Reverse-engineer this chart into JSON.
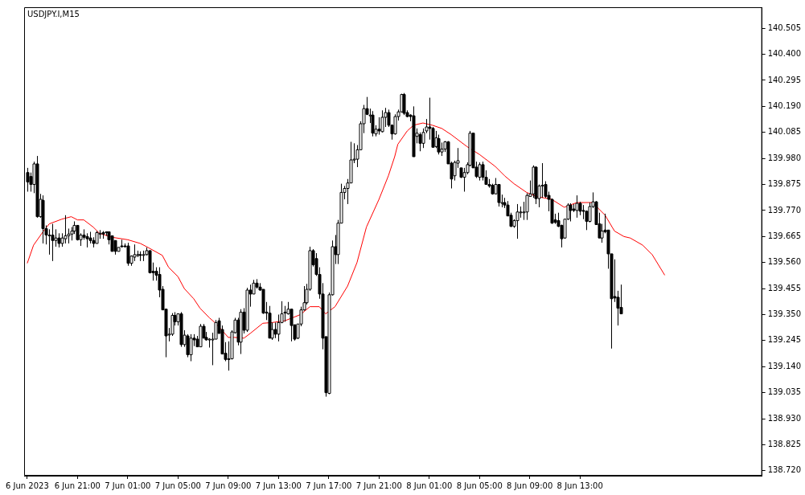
{
  "chart_data": {
    "type": "candlestick",
    "title": "USDJPY.I,M15",
    "xlim": [
      "2023-06-06T16:45",
      "2023-06-09T03:30"
    ],
    "xticks": [
      {
        "value": "2023-06-06T17:00",
        "label": "6 Jun 2023"
      },
      {
        "value": "2023-06-06T21:00",
        "label": "6 Jun 21:00"
      },
      {
        "value": "2023-06-07T01:00",
        "label": "7 Jun 01:00"
      },
      {
        "value": "2023-06-07T05:00",
        "label": "7 Jun 05:00"
      },
      {
        "value": "2023-06-07T09:00",
        "label": "7 Jun 09:00"
      },
      {
        "value": "2023-06-07T13:00",
        "label": "7 Jun 13:00"
      },
      {
        "value": "2023-06-07T17:00",
        "label": "7 Jun 17:00"
      },
      {
        "value": "2023-06-07T21:00",
        "label": "7 Jun 21:00"
      },
      {
        "value": "2023-06-08T01:00",
        "label": "8 Jun 01:00"
      },
      {
        "value": "2023-06-08T05:00",
        "label": "8 Jun 05:00"
      },
      {
        "value": "2023-06-08T09:00",
        "label": "8 Jun 09:00"
      },
      {
        "value": "2023-06-08T13:00",
        "label": "8 Jun 13:00"
      }
    ],
    "ylim": [
      138.7,
      140.59
    ],
    "yticks": [
      {
        "value": 138.72,
        "label": "138.720"
      },
      {
        "value": 138.825,
        "label": "138.825"
      },
      {
        "value": 138.93,
        "label": "138.930"
      },
      {
        "value": 139.035,
        "label": "139.035"
      },
      {
        "value": 139.14,
        "label": "139.140"
      },
      {
        "value": 139.245,
        "label": "139.245"
      },
      {
        "value": 139.35,
        "label": "139.350"
      },
      {
        "value": 139.455,
        "label": "139.455"
      },
      {
        "value": 139.56,
        "label": "139.560"
      },
      {
        "value": 139.665,
        "label": "139.665"
      },
      {
        "value": 139.77,
        "label": "139.770"
      },
      {
        "value": 139.875,
        "label": "139.875"
      },
      {
        "value": 139.98,
        "label": "139.980"
      },
      {
        "value": 140.085,
        "label": "140.085"
      },
      {
        "value": 140.19,
        "label": "140.190"
      },
      {
        "value": 140.295,
        "label": "140.295"
      },
      {
        "value": 140.4,
        "label": "140.400"
      },
      {
        "value": 140.505,
        "label": "140.505"
      }
    ],
    "series": [
      {
        "type": "candlestick",
        "colors": [
          "#000000",
          "#000000",
          "#ffffff",
          "#000000",
          "#ffffff",
          "#000000",
          "#000000",
          "#000000",
          "#000000",
          "#ffffff",
          "#000000",
          "#ffffff",
          "#ffffff",
          "#ffffff",
          "#ffffff",
          "#ffffff",
          "#000000",
          "#ffffff",
          "#000000",
          "#000000",
          "#000000",
          "#000000",
          "#ffffff",
          "#ffffff",
          "#000000",
          "#000000",
          "#000000",
          "#000000",
          "#000000",
          "#ffffff",
          "#000000",
          "#000000",
          "#000000",
          "#ffffff",
          "#ffffff",
          "#ffffff",
          "#000000",
          "#ffffff",
          "#ffffff",
          "#000000",
          "#000000",
          "#000000",
          "#000000",
          "#000000",
          "#000000",
          "#ffffff",
          "#ffffff",
          "#000000",
          "#ffffff",
          "#000000",
          "#ffffff",
          "#000000",
          "#ffffff",
          "#000000",
          "#000000",
          "#ffffff",
          "#000000",
          "#000000",
          "#ffffff",
          "#ffffff",
          "#ffffff",
          "#000000",
          "#000000",
          "#000000",
          "#000000",
          "#ffffff",
          "#ffffff",
          "#000000",
          "#ffffff",
          "#000000",
          "#ffffff",
          "#000000",
          "#ffffff",
          "#000000",
          "#000000",
          "#000000",
          "#000000",
          "#000000",
          "#ffffff",
          "#000000",
          "#ffffff",
          "#ffffff",
          "#ffffff",
          "#ffffff",
          "#000000",
          "#000000",
          "#ffffff",
          "#ffffff",
          "#ffffff",
          "#ffffff",
          "#ffffff",
          "#000000",
          "#000000",
          "#000000",
          "#000000",
          "#000000",
          "#ffffff",
          "#ffffff",
          "#000000",
          "#ffffff",
          "#ffffff",
          "#ffffff",
          "#ffffff",
          "#ffffff",
          "#ffffff",
          "#ffffff",
          "#ffffff",
          "#ffffff",
          "#000000",
          "#ffffff",
          "#000000",
          "#ffffff",
          "#000000",
          "#ffffff",
          "#ffffff",
          "#000000",
          "#000000",
          "#ffffff",
          "#ffffff",
          "#ffffff",
          "#000000",
          "#000000",
          "#000000",
          "#000000",
          "#ffffff",
          "#000000",
          "#ffffff",
          "#ffffff",
          "#000000",
          "#000000",
          "#ffffff",
          "#000000",
          "#ffffff",
          "#ffffff",
          "#000000",
          "#000000",
          "#ffffff",
          "#ffffff",
          "#000000",
          "#ffffff",
          "#ffffff",
          "#ffffff",
          "#000000",
          "#000000",
          "#ffffff",
          "#000000",
          "#000000",
          "#000000",
          "#000000",
          "#ffffff",
          "#000000",
          "#ffffff",
          "#000000",
          "#000000",
          "#000000",
          "#ffffff",
          "#ffffff",
          "#ffffff",
          "#ffffff",
          "#ffffff",
          "#ffffff",
          "#ffffff",
          "#000000",
          "#ffffff",
          "#ffffff",
          "#000000",
          "#000000",
          "#000000",
          "#000000",
          "#000000",
          "#000000",
          "#ffffff",
          "#ffffff",
          "#000000",
          "#000000",
          "#ffffff",
          "#000000",
          "#000000",
          "#000000",
          "#ffffff",
          "#ffffff",
          "#000000",
          "#000000",
          "#ffffff",
          "#000000",
          "#000000",
          "#000000",
          "#000000",
          "#000000",
          "#000000"
        ],
        "x": [
          "2023-06-06T17:00",
          "2023-06-06T17:15",
          "2023-06-06T17:30",
          "2023-06-06T17:45",
          "2023-06-06T18:00",
          "2023-06-06T18:15",
          "2023-06-06T18:30",
          "2023-06-06T18:45",
          "2023-06-06T19:00",
          "2023-06-06T19:15",
          "2023-06-06T19:30",
          "2023-06-06T19:45",
          "2023-06-06T20:00",
          "2023-06-06T20:15",
          "2023-06-06T20:30",
          "2023-06-06T20:45",
          "2023-06-06T21:00",
          "2023-06-06T21:15",
          "2023-06-06T21:30",
          "2023-06-06T21:45",
          "2023-06-06T22:00",
          "2023-06-06T22:15",
          "2023-06-06T22:30",
          "2023-06-06T22:45",
          "2023-06-06T23:00",
          "2023-06-06T23:15",
          "2023-06-06T23:30",
          "2023-06-06T23:45",
          "2023-06-07T00:00",
          "2023-06-07T00:15",
          "2023-06-07T00:30",
          "2023-06-07T00:45",
          "2023-06-07T01:00",
          "2023-06-07T01:15",
          "2023-06-07T01:30",
          "2023-06-07T01:45",
          "2023-06-07T02:00",
          "2023-06-07T02:15",
          "2023-06-07T02:30",
          "2023-06-07T02:45",
          "2023-06-07T03:00",
          "2023-06-07T03:15",
          "2023-06-07T03:30",
          "2023-06-07T03:45",
          "2023-06-07T04:00",
          "2023-06-07T04:15",
          "2023-06-07T04:30",
          "2023-06-07T04:45",
          "2023-06-07T05:00",
          "2023-06-07T05:15",
          "2023-06-07T05:30",
          "2023-06-07T05:45",
          "2023-06-07T06:00",
          "2023-06-07T06:15",
          "2023-06-07T06:30",
          "2023-06-07T06:45",
          "2023-06-07T07:00",
          "2023-06-07T07:15",
          "2023-06-07T07:30",
          "2023-06-07T07:45",
          "2023-06-07T08:00",
          "2023-06-07T08:15",
          "2023-06-07T08:30",
          "2023-06-07T08:45",
          "2023-06-07T09:00",
          "2023-06-07T09:15",
          "2023-06-07T09:30",
          "2023-06-07T09:45",
          "2023-06-07T10:00",
          "2023-06-07T10:15",
          "2023-06-07T10:30",
          "2023-06-07T10:45",
          "2023-06-07T11:00",
          "2023-06-07T11:15",
          "2023-06-07T11:30",
          "2023-06-07T11:45",
          "2023-06-07T12:00",
          "2023-06-07T12:15",
          "2023-06-07T12:30",
          "2023-06-07T12:45",
          "2023-06-07T13:00",
          "2023-06-07T13:15",
          "2023-06-07T13:30",
          "2023-06-07T13:45",
          "2023-06-07T14:00",
          "2023-06-07T14:15",
          "2023-06-07T14:30",
          "2023-06-07T14:45",
          "2023-06-07T15:00",
          "2023-06-07T15:15",
          "2023-06-07T15:30",
          "2023-06-07T15:45",
          "2023-06-07T16:00",
          "2023-06-07T16:15",
          "2023-06-07T16:30",
          "2023-06-07T16:45",
          "2023-06-07T17:00",
          "2023-06-07T17:15",
          "2023-06-07T17:30",
          "2023-06-07T17:45",
          "2023-06-07T18:00",
          "2023-06-07T18:15",
          "2023-06-07T18:30",
          "2023-06-07T18:45",
          "2023-06-07T19:00",
          "2023-06-07T19:15",
          "2023-06-07T19:30",
          "2023-06-07T19:45",
          "2023-06-07T20:00",
          "2023-06-07T20:15",
          "2023-06-07T20:30",
          "2023-06-07T20:45",
          "2023-06-07T21:00",
          "2023-06-07T21:15",
          "2023-06-07T21:30",
          "2023-06-07T21:45",
          "2023-06-07T22:00",
          "2023-06-07T22:15",
          "2023-06-07T22:30",
          "2023-06-07T22:45",
          "2023-06-07T23:00",
          "2023-06-07T23:15",
          "2023-06-07T23:30",
          "2023-06-07T23:45",
          "2023-06-08T00:00",
          "2023-06-08T00:15",
          "2023-06-08T00:30",
          "2023-06-08T00:45",
          "2023-06-08T01:00",
          "2023-06-08T01:15",
          "2023-06-08T01:30",
          "2023-06-08T01:45",
          "2023-06-08T02:00",
          "2023-06-08T02:15",
          "2023-06-08T02:30",
          "2023-06-08T02:45",
          "2023-06-08T03:00",
          "2023-06-08T03:15",
          "2023-06-08T03:30",
          "2023-06-08T03:45",
          "2023-06-08T04:00",
          "2023-06-08T04:15",
          "2023-06-08T04:30",
          "2023-06-08T04:45",
          "2023-06-08T05:00",
          "2023-06-08T05:15",
          "2023-06-08T05:30",
          "2023-06-08T05:45",
          "2023-06-08T06:00",
          "2023-06-08T06:15",
          "2023-06-08T06:30",
          "2023-06-08T06:45",
          "2023-06-08T07:00",
          "2023-06-08T07:15",
          "2023-06-08T07:30",
          "2023-06-08T07:45",
          "2023-06-08T08:00",
          "2023-06-08T08:15",
          "2023-06-08T08:30",
          "2023-06-08T08:45",
          "2023-06-08T09:00",
          "2023-06-08T09:15",
          "2023-06-08T09:30",
          "2023-06-08T09:45",
          "2023-06-08T10:00",
          "2023-06-08T10:15",
          "2023-06-08T10:30",
          "2023-06-08T10:45",
          "2023-06-08T11:00",
          "2023-06-08T11:15",
          "2023-06-08T11:30",
          "2023-06-08T11:45",
          "2023-06-08T12:00",
          "2023-06-08T12:15",
          "2023-06-08T12:30",
          "2023-06-08T12:45",
          "2023-06-08T13:00",
          "2023-06-08T13:15",
          "2023-06-08T13:30",
          "2023-06-08T13:45",
          "2023-06-08T14:00",
          "2023-06-08T14:15",
          "2023-06-08T14:30",
          "2023-06-08T14:45",
          "2023-06-08T15:00",
          "2023-06-08T15:15",
          "2023-06-08T15:30",
          "2023-06-08T15:45",
          "2023-06-08T16:00",
          "2023-06-08T16:15"
        ],
        "ohlc": [
          [
            139.923,
            139.942,
            139.846,
            139.885
          ],
          [
            139.907,
            139.923,
            139.846,
            139.875
          ],
          [
            139.875,
            139.967,
            139.84,
            139.958
          ],
          [
            139.958,
            139.99,
            139.741,
            139.745
          ],
          [
            139.745,
            139.837,
            139.741,
            139.815
          ],
          [
            139.811,
            139.831,
            139.637,
            139.697
          ],
          [
            139.697,
            139.71,
            139.633,
            139.671
          ],
          [
            139.671,
            139.694,
            139.592,
            139.668
          ],
          [
            139.671,
            139.716,
            139.566,
            139.649
          ],
          [
            139.649,
            139.694,
            139.624,
            139.659
          ],
          [
            139.659,
            139.678,
            139.621,
            139.637
          ],
          [
            139.637,
            139.678,
            139.624,
            139.659
          ],
          [
            139.656,
            139.751,
            139.637,
            139.668
          ],
          [
            139.668,
            139.697,
            139.637,
            139.675
          ],
          [
            139.675,
            139.703,
            139.649,
            139.687
          ],
          [
            139.687,
            139.726,
            139.675,
            139.71
          ],
          [
            139.71,
            139.71,
            139.649,
            139.652
          ],
          [
            139.652,
            139.678,
            139.627,
            139.671
          ],
          [
            139.671,
            139.694,
            139.652,
            139.662
          ],
          [
            139.665,
            139.678,
            139.621,
            139.656
          ],
          [
            139.659,
            139.684,
            139.637,
            139.649
          ],
          [
            139.649,
            139.662,
            139.621,
            139.637
          ],
          [
            139.637,
            139.687,
            139.637,
            139.681
          ],
          [
            139.678,
            139.691,
            139.656,
            139.678
          ],
          [
            139.681,
            139.687,
            139.656,
            139.675
          ],
          [
            139.684,
            139.684,
            139.668,
            139.681
          ],
          [
            139.684,
            139.684,
            139.633,
            139.652
          ],
          [
            139.668,
            139.668,
            139.605,
            139.605
          ],
          [
            139.649,
            139.649,
            139.592,
            139.605
          ],
          [
            139.605,
            139.621,
            139.605,
            139.621
          ],
          [
            139.624,
            139.652,
            139.621,
            139.627
          ],
          [
            139.627,
            139.637,
            139.621,
            139.624
          ],
          [
            139.627,
            139.64,
            139.547,
            139.557
          ],
          [
            139.557,
            139.589,
            139.547,
            139.586
          ],
          [
            139.582,
            139.633,
            139.566,
            139.592
          ],
          [
            139.592,
            139.608,
            139.582,
            139.592
          ],
          [
            139.592,
            139.605,
            139.566,
            139.589
          ],
          [
            139.592,
            139.608,
            139.566,
            139.592
          ],
          [
            139.592,
            139.621,
            139.589,
            139.608
          ],
          [
            139.608,
            139.608,
            139.516,
            139.519
          ],
          [
            139.525,
            139.56,
            139.487,
            139.519
          ],
          [
            139.525,
            139.541,
            139.487,
            139.509
          ],
          [
            139.512,
            139.541,
            139.42,
            139.449
          ],
          [
            139.452,
            139.465,
            139.369,
            139.369
          ],
          [
            139.372,
            139.372,
            139.178,
            139.264
          ],
          [
            139.271,
            139.296,
            139.242,
            139.271
          ],
          [
            139.271,
            139.356,
            139.264,
            139.347
          ],
          [
            139.347,
            139.36,
            139.306,
            139.321
          ],
          [
            139.321,
            139.353,
            139.306,
            139.353
          ],
          [
            139.353,
            139.36,
            139.22,
            139.229
          ],
          [
            139.229,
            139.287,
            139.22,
            139.267
          ],
          [
            139.264,
            139.271,
            139.178,
            139.188
          ],
          [
            139.188,
            139.271,
            139.162,
            139.255
          ],
          [
            139.255,
            139.271,
            139.223,
            139.248
          ],
          [
            139.251,
            139.264,
            139.22,
            139.22
          ],
          [
            139.22,
            139.312,
            139.22,
            139.303
          ],
          [
            139.303,
            139.312,
            139.255,
            139.255
          ],
          [
            139.258,
            139.28,
            139.245,
            139.248
          ],
          [
            139.251,
            139.255,
            139.217,
            139.251
          ],
          [
            139.251,
            139.277,
            139.146,
            139.251
          ],
          [
            139.251,
            139.328,
            139.251,
            139.318
          ],
          [
            139.325,
            139.337,
            139.274,
            139.274
          ],
          [
            139.29,
            139.306,
            139.191,
            139.191
          ],
          [
            139.194,
            139.239,
            139.162,
            139.169
          ],
          [
            139.172,
            139.242,
            139.124,
            139.169
          ],
          [
            139.172,
            139.287,
            139.169,
            139.28
          ],
          [
            139.277,
            139.337,
            139.274,
            139.328
          ],
          [
            139.328,
            139.337,
            139.226,
            139.239
          ],
          [
            139.239,
            139.372,
            139.191,
            139.36
          ],
          [
            139.36,
            139.376,
            139.274,
            139.287
          ],
          [
            139.287,
            139.458,
            139.28,
            139.449
          ],
          [
            139.449,
            139.471,
            139.382,
            139.433
          ],
          [
            139.433,
            139.49,
            139.433,
            139.477
          ],
          [
            139.477,
            139.493,
            139.455,
            139.461
          ],
          [
            139.461,
            139.477,
            139.446,
            139.449
          ],
          [
            139.452,
            139.452,
            139.353,
            139.356
          ],
          [
            139.36,
            139.401,
            139.328,
            139.356
          ],
          [
            139.356,
            139.385,
            139.255,
            139.255
          ],
          [
            139.255,
            139.318,
            139.248,
            139.29
          ],
          [
            139.29,
            139.318,
            139.255,
            139.271
          ],
          [
            139.271,
            139.35,
            139.242,
            139.318
          ],
          [
            139.318,
            139.404,
            139.315,
            139.353
          ],
          [
            139.356,
            139.385,
            139.321,
            139.36
          ],
          [
            139.353,
            139.401,
            139.35,
            139.372
          ],
          [
            139.372,
            139.372,
            139.242,
            139.306
          ],
          [
            139.309,
            139.309,
            139.245,
            139.251
          ],
          [
            139.255,
            139.312,
            139.251,
            139.312
          ],
          [
            139.312,
            139.382,
            139.303,
            139.369
          ],
          [
            139.369,
            139.465,
            139.366,
            139.398
          ],
          [
            139.398,
            139.474,
            139.391,
            139.452
          ],
          [
            139.452,
            139.624,
            139.446,
            139.608
          ],
          [
            139.608,
            139.614,
            139.544,
            139.551
          ],
          [
            139.576,
            139.598,
            139.506,
            139.512
          ],
          [
            139.512,
            139.541,
            139.414,
            139.433
          ],
          [
            139.433,
            139.477,
            139.21,
            139.255
          ],
          [
            139.261,
            139.261,
            139.019,
            139.035
          ],
          [
            139.032,
            139.439,
            139.029,
            139.43
          ],
          [
            139.43,
            139.649,
            139.427,
            139.624
          ],
          [
            139.624,
            139.671,
            139.554,
            139.592
          ],
          [
            139.592,
            139.732,
            139.554,
            139.719
          ],
          [
            139.719,
            139.878,
            139.719,
            139.843
          ],
          [
            139.843,
            139.869,
            139.815,
            139.859
          ],
          [
            139.859,
            139.897,
            139.796,
            139.881
          ],
          [
            139.881,
            140.047,
            139.881,
            139.974
          ],
          [
            139.974,
            140.041,
            139.961,
            139.977
          ],
          [
            139.977,
            140.034,
            139.945,
            140.015
          ],
          [
            140.015,
            140.13,
            140.015,
            140.12
          ],
          [
            140.12,
            140.196,
            140.082,
            140.181
          ],
          [
            140.181,
            140.228,
            140.155,
            140.158
          ],
          [
            140.155,
            140.181,
            140.123,
            140.155
          ],
          [
            140.155,
            140.171,
            140.069,
            140.082
          ],
          [
            140.079,
            140.114,
            140.069,
            140.098
          ],
          [
            140.098,
            140.146,
            140.076,
            140.091
          ],
          [
            140.088,
            140.174,
            140.085,
            140.146
          ],
          [
            140.146,
            140.184,
            140.107,
            140.165
          ],
          [
            140.165,
            140.177,
            140.107,
            140.114
          ],
          [
            140.114,
            140.117,
            140.056,
            140.079
          ],
          [
            140.079,
            140.158,
            140.076,
            140.149
          ],
          [
            140.149,
            140.177,
            140.133,
            140.168
          ],
          [
            140.168,
            140.241,
            140.165,
            140.238
          ],
          [
            140.238,
            140.244,
            140.155,
            140.162
          ],
          [
            140.165,
            140.174,
            140.146,
            140.149
          ],
          [
            140.155,
            140.158,
            140.13,
            140.149
          ],
          [
            140.152,
            140.19,
            139.987,
            139.987
          ],
          [
            140.069,
            140.101,
            140.041,
            140.082
          ],
          [
            140.076,
            140.085,
            140.009,
            140.041
          ],
          [
            140.041,
            140.101,
            140.022,
            140.085
          ],
          [
            140.091,
            140.139,
            140.082,
            140.107
          ],
          [
            140.107,
            140.225,
            140.056,
            140.101
          ],
          [
            140.101,
            140.107,
            140.025,
            140.025
          ],
          [
            140.028,
            140.091,
            140.022,
            140.063
          ],
          [
            140.06,
            140.076,
            139.996,
            140.006
          ],
          [
            140.006,
            140.044,
            139.99,
            140.018
          ],
          [
            140.018,
            140.05,
            140.006,
            140.047
          ],
          [
            140.047,
            140.05,
            139.958,
            139.958
          ],
          [
            139.961,
            139.967,
            139.859,
            139.897
          ],
          [
            139.91,
            139.971,
            139.891,
            139.964
          ],
          [
            139.961,
            140.022,
            139.942,
            139.971
          ],
          [
            139.942,
            139.942,
            139.901,
            139.904
          ],
          [
            139.904,
            139.942,
            139.846,
            139.923
          ],
          [
            139.923,
            139.964,
            139.916,
            139.955
          ],
          [
            139.952,
            140.091,
            139.948,
            140.082
          ],
          [
            140.082,
            140.082,
            139.942,
            139.942
          ],
          [
            139.945,
            139.967,
            139.901,
            139.907
          ],
          [
            139.904,
            139.964,
            139.891,
            139.955
          ],
          [
            139.955,
            139.967,
            139.891,
            139.904
          ],
          [
            139.904,
            139.932,
            139.875,
            139.875
          ],
          [
            139.875,
            139.897,
            139.862,
            139.869
          ],
          [
            139.872,
            139.878,
            139.834,
            139.837
          ],
          [
            139.837,
            139.901,
            139.837,
            139.875
          ],
          [
            139.875,
            139.875,
            139.786,
            139.802
          ],
          [
            139.802,
            139.834,
            139.783,
            139.802
          ],
          [
            139.802,
            139.821,
            139.78,
            139.792
          ],
          [
            139.792,
            139.808,
            139.748,
            139.748
          ],
          [
            139.751,
            139.761,
            139.703,
            139.706
          ],
          [
            139.706,
            139.735,
            139.7,
            139.729
          ],
          [
            139.729,
            139.796,
            139.656,
            139.764
          ],
          [
            139.764,
            139.786,
            139.741,
            139.764
          ],
          [
            139.764,
            139.805,
            139.732,
            139.764
          ],
          [
            139.764,
            139.84,
            139.732,
            139.831
          ],
          [
            139.827,
            139.891,
            139.827,
            139.837
          ],
          [
            139.837,
            139.952,
            139.821,
            139.945
          ],
          [
            139.945,
            139.948,
            139.796,
            139.818
          ],
          [
            139.818,
            139.875,
            139.783,
            139.869
          ],
          [
            139.869,
            139.961,
            139.821,
            139.872
          ],
          [
            139.875,
            139.888,
            139.821,
            139.827
          ],
          [
            139.831,
            139.846,
            139.767,
            139.815
          ],
          [
            139.815,
            139.818,
            139.716,
            139.719
          ],
          [
            139.732,
            139.757,
            139.716,
            139.722
          ],
          [
            139.729,
            139.761,
            139.703,
            139.706
          ],
          [
            139.71,
            139.713,
            139.621,
            139.656
          ],
          [
            139.659,
            139.735,
            139.656,
            139.735
          ],
          [
            139.735,
            139.799,
            139.732,
            139.792
          ],
          [
            139.792,
            139.799,
            139.726,
            139.77
          ],
          [
            139.776,
            139.796,
            139.764,
            139.77
          ],
          [
            139.77,
            139.831,
            139.741,
            139.799
          ],
          [
            139.799,
            139.805,
            139.751,
            139.767
          ],
          [
            139.77,
            139.792,
            139.735,
            139.767
          ],
          [
            139.767,
            139.77,
            139.691,
            139.726
          ],
          [
            139.726,
            139.802,
            139.722,
            139.786
          ],
          [
            139.786,
            139.843,
            139.78,
            139.805
          ],
          [
            139.805,
            139.808,
            139.713,
            139.713
          ],
          [
            139.716,
            139.761,
            139.659,
            139.659
          ],
          [
            139.659,
            139.716,
            139.64,
            139.687
          ],
          [
            139.691,
            139.757,
            139.678,
            139.684
          ],
          [
            139.691,
            139.691,
            139.535,
            139.595
          ],
          [
            139.595,
            139.595,
            139.213,
            139.414
          ],
          [
            139.423,
            139.573,
            139.401,
            139.417
          ],
          [
            139.42,
            139.446,
            139.306,
            139.376
          ],
          [
            139.379,
            139.471,
            139.353,
            139.353
          ]
        ]
      },
      {
        "type": "line",
        "color": "#ff0000",
        "x": [
          "2023-06-06T17:00",
          "2023-06-06T17:30",
          "2023-06-06T18:15",
          "2023-06-06T18:45",
          "2023-06-06T19:45",
          "2023-06-06T20:30",
          "2023-06-06T21:00",
          "2023-06-06T21:30",
          "2023-06-06T22:15",
          "2023-06-06T22:45",
          "2023-06-06T23:45",
          "2023-06-07T01:00",
          "2023-06-07T02:00",
          "2023-06-07T02:30",
          "2023-06-07T03:45",
          "2023-06-07T04:15",
          "2023-06-07T05:00",
          "2023-06-07T05:30",
          "2023-06-07T06:15",
          "2023-06-07T06:45",
          "2023-06-07T07:30",
          "2023-06-07T08:00",
          "2023-06-07T08:30",
          "2023-06-07T09:00",
          "2023-06-07T09:30",
          "2023-06-07T10:15",
          "2023-06-07T10:45",
          "2023-06-07T11:45",
          "2023-06-07T12:30",
          "2023-06-07T13:30",
          "2023-06-07T14:45",
          "2023-06-07T15:30",
          "2023-06-07T16:15",
          "2023-06-07T16:45",
          "2023-06-07T17:30",
          "2023-06-07T18:30",
          "2023-06-07T19:15",
          "2023-06-07T20:00",
          "2023-06-07T21:00",
          "2023-06-07T21:45",
          "2023-06-07T22:15",
          "2023-06-07T22:30",
          "2023-06-07T23:15",
          "2023-06-07T23:45",
          "2023-06-08T00:30",
          "2023-06-08T01:15",
          "2023-06-08T02:00",
          "2023-06-08T02:45",
          "2023-06-08T04:00",
          "2023-06-08T05:00",
          "2023-06-08T06:15",
          "2023-06-08T07:00",
          "2023-06-08T07:45",
          "2023-06-08T08:45",
          "2023-06-08T09:30",
          "2023-06-08T10:45",
          "2023-06-08T11:45",
          "2023-06-08T12:45",
          "2023-06-08T14:00",
          "2023-06-08T15:00",
          "2023-06-08T15:45",
          "2023-06-08T16:30",
          "2023-06-08T17:00",
          "2023-06-08T18:00",
          "2023-06-08T18:45",
          "2023-06-08T19:45"
        ],
        "values": [
          139.557,
          139.63,
          139.684,
          139.716,
          139.735,
          139.745,
          139.732,
          139.732,
          139.703,
          139.678,
          139.662,
          139.652,
          139.637,
          139.624,
          139.589,
          139.541,
          139.503,
          139.455,
          139.414,
          139.376,
          139.337,
          139.315,
          139.287,
          139.258,
          139.258,
          139.255,
          139.274,
          139.315,
          139.318,
          139.325,
          139.35,
          139.382,
          139.382,
          139.353,
          139.382,
          139.465,
          139.56,
          139.703,
          139.815,
          139.91,
          139.987,
          140.037,
          140.091,
          140.114,
          140.123,
          140.114,
          140.101,
          140.076,
          140.028,
          139.996,
          139.948,
          139.91,
          139.878,
          139.843,
          139.827,
          139.815,
          139.783,
          139.802,
          139.802,
          139.751,
          139.687,
          139.665,
          139.659,
          139.63,
          139.592,
          139.509
        ]
      }
    ]
  }
}
